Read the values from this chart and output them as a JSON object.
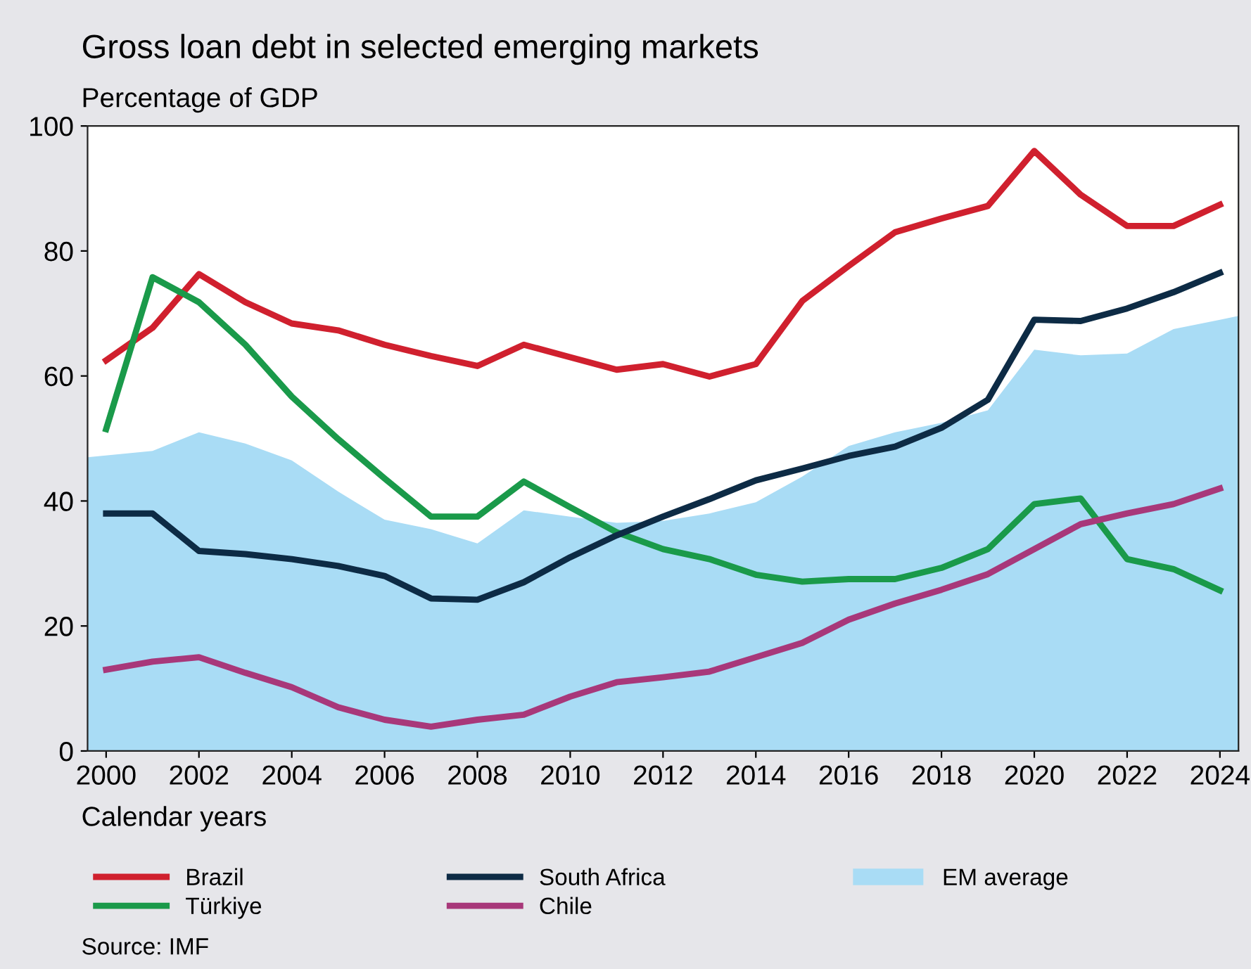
{
  "chart_data": {
    "type": "line",
    "title": "Gross loan debt in selected emerging markets",
    "ylabel": "Percentage of GDP",
    "xlabel": "Calendar years",
    "annotations": [
      "Source: IMF"
    ],
    "x": [
      2000,
      2001,
      2002,
      2003,
      2004,
      2005,
      2006,
      2007,
      2008,
      2009,
      2010,
      2011,
      2012,
      2013,
      2014,
      2015,
      2016,
      2017,
      2018,
      2019,
      2020,
      2021,
      2022,
      2023,
      2024
    ],
    "series": [
      {
        "name": "Brazil",
        "color": "#d0202e",
        "values": [
          62.5,
          67.7,
          76.3,
          71.8,
          68.4,
          67.3,
          65,
          63.2,
          61.6,
          65,
          63,
          61,
          61.9,
          59.9,
          61.9,
          72,
          77.6,
          83,
          85.2,
          87.2,
          96,
          89,
          84,
          84,
          87.4
        ]
      },
      {
        "name": "Türkiye",
        "color": "#1a9a4a",
        "values": [
          51.5,
          75.8,
          71.8,
          65,
          56.7,
          49.9,
          43.6,
          37.5,
          37.5,
          43.1,
          39,
          35,
          32.3,
          30.7,
          28.2,
          27.1,
          27.5,
          27.5,
          29.3,
          32.3,
          39.5,
          40.4,
          30.7,
          29.1,
          25.7
        ]
      },
      {
        "name": "South Africa",
        "color": "#0d2b45",
        "values": [
          38,
          38,
          32,
          31.5,
          30.7,
          29.6,
          28,
          24.4,
          24.2,
          27,
          31,
          34.5,
          37.5,
          40.3,
          43.3,
          45.2,
          47.2,
          48.7,
          51.7,
          56.2,
          69,
          68.8,
          70.8,
          73.4,
          76.5
        ]
      },
      {
        "name": "Chile",
        "color": "#a8387a",
        "values": [
          13,
          14.3,
          15,
          12.5,
          10.2,
          7,
          5,
          3.9,
          5,
          5.8,
          8.7,
          11,
          11.8,
          12.7,
          15,
          17.3,
          21,
          23.6,
          25.8,
          28.3,
          32.3,
          36.3,
          38,
          39.5,
          42
        ]
      },
      {
        "name": "EM average",
        "type": "area",
        "color": "#a9dcf5",
        "x": [
          1999.6,
          2001,
          2002,
          2003,
          2004,
          2005,
          2006,
          2007,
          2008,
          2009,
          2010,
          2011,
          2012,
          2013,
          2014,
          2015,
          2016,
          2017,
          2018,
          2019,
          2020,
          2021,
          2022,
          2023,
          2024,
          2024.4
        ],
        "values": [
          47,
          48,
          51,
          49.2,
          46.5,
          41.5,
          37,
          35.5,
          33.2,
          38.5,
          37.5,
          36.5,
          36.8,
          38,
          39.8,
          43.9,
          48.8,
          51,
          52.5,
          54.5,
          64.2,
          63.3,
          63.6,
          67.5,
          69,
          69.6
        ]
      }
    ],
    "xlim": [
      1999.6,
      2024.4
    ],
    "xticks": [
      2000,
      2002,
      2004,
      2006,
      2008,
      2010,
      2012,
      2014,
      2016,
      2018,
      2020,
      2022,
      2024
    ],
    "ylim": [
      0,
      100
    ],
    "yticks": [
      0,
      20,
      40,
      60,
      80,
      100
    ],
    "legend": "bottom",
    "grid": false
  }
}
